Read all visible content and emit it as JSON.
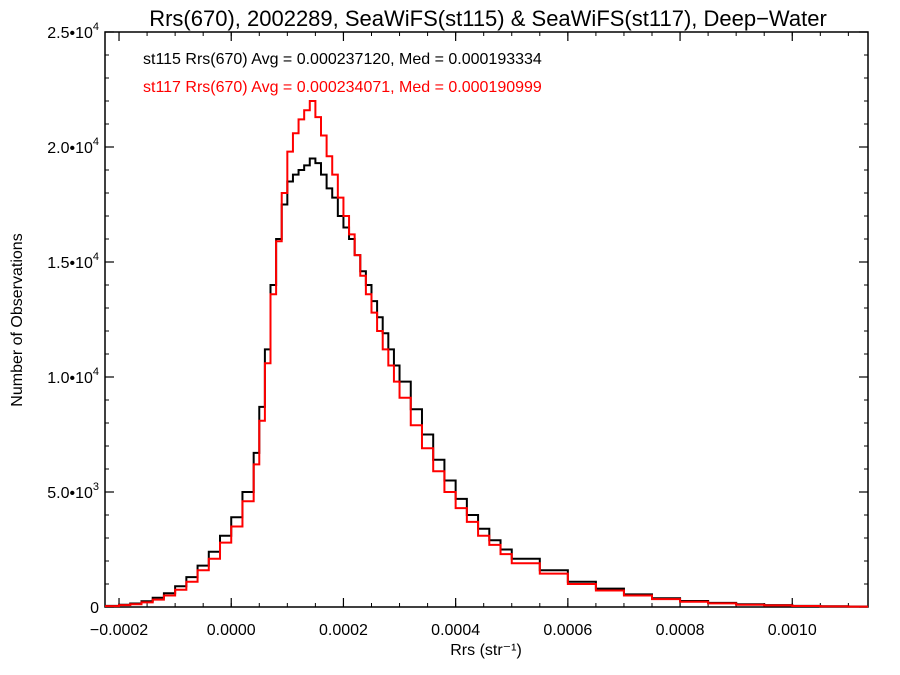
{
  "chart_data": {
    "type": "line",
    "title": "Rrs(670), 2002289, SeaWiFS(st115) & SeaWiFS(st117), Deep−Water",
    "xlabel": "Rrs (str⁻¹)",
    "ylabel": "Number of Observations",
    "xlim": [
      -0.000225,
      0.001135
    ],
    "ylim": [
      0,
      25000
    ],
    "x_ticks": [
      -0.0002,
      0.0,
      0.0002,
      0.0004,
      0.0006,
      0.0008,
      0.001
    ],
    "x_tick_labels": [
      "−0.0002",
      "0.0000",
      "0.0002",
      "0.0004",
      "0.0006",
      "0.0008",
      "0.0010"
    ],
    "y_ticks": [
      0,
      5000,
      10000,
      15000,
      20000,
      25000
    ],
    "y_tick_labels": [
      {
        "mant": "0",
        "exp": ""
      },
      {
        "mant": "5.0•10",
        "exp": "3"
      },
      {
        "mant": "1.0•10",
        "exp": "4"
      },
      {
        "mant": "1.5•10",
        "exp": "4"
      },
      {
        "mant": "2.0•10",
        "exp": "4"
      },
      {
        "mant": "2.5•10",
        "exp": "4"
      }
    ],
    "grid": false,
    "annotations": [
      {
        "text": "st115 Rrs(670) Avg = 0.000237120, Med = 0.000193334",
        "color": "#000000"
      },
      {
        "text": "st117 Rrs(670) Avg = 0.000234071, Med = 0.000190999",
        "color": "#ff0000"
      }
    ],
    "series": [
      {
        "color": "#000000",
        "render": "step",
        "x": [
          -0.000225,
          -0.0002,
          -0.00018,
          -0.00016,
          -0.00014,
          -0.00012,
          -0.0001,
          -8e-05,
          -6e-05,
          -4e-05,
          -2e-05,
          0.0,
          2e-05,
          4e-05,
          5e-05,
          6e-05,
          7e-05,
          8e-05,
          9e-05,
          0.0001,
          0.00011,
          0.00012,
          0.00013,
          0.00014,
          0.00015,
          0.00016,
          0.00017,
          0.00018,
          0.00019,
          0.0002,
          0.00021,
          0.00022,
          0.00023,
          0.00024,
          0.00025,
          0.00026,
          0.00027,
          0.00028,
          0.00029,
          0.0003,
          0.00032,
          0.00034,
          0.00036,
          0.00038,
          0.0004,
          0.00042,
          0.00044,
          0.00046,
          0.00048,
          0.0005,
          0.00055,
          0.0006,
          0.00065,
          0.0007,
          0.00075,
          0.0008,
          0.00085,
          0.0009,
          0.00095,
          0.001,
          0.00105,
          0.0011
        ],
        "y": [
          50,
          100,
          150,
          250,
          400,
          600,
          900,
          1300,
          1800,
          2400,
          3100,
          3900,
          5000,
          6700,
          8700,
          11200,
          14000,
          16000,
          17500,
          18500,
          18800,
          19000,
          19200,
          19500,
          19300,
          18800,
          18200,
          17800,
          17000,
          16500,
          16000,
          15300,
          14600,
          14000,
          13300,
          12600,
          11900,
          11200,
          10500,
          9800,
          8600,
          7500,
          6400,
          5500,
          4700,
          4000,
          3400,
          2900,
          2500,
          2100,
          1600,
          1100,
          800,
          550,
          380,
          260,
          180,
          120,
          80,
          50,
          30,
          20
        ]
      },
      {
        "color": "#ff0000",
        "render": "step",
        "x": [
          -0.000225,
          -0.0002,
          -0.00018,
          -0.00016,
          -0.00014,
          -0.00012,
          -0.0001,
          -8e-05,
          -6e-05,
          -4e-05,
          -2e-05,
          0.0,
          2e-05,
          4e-05,
          5e-05,
          6e-05,
          7e-05,
          8e-05,
          9e-05,
          0.0001,
          0.00011,
          0.00012,
          0.00013,
          0.00014,
          0.00015,
          0.00016,
          0.00017,
          0.00018,
          0.00019,
          0.0002,
          0.00021,
          0.00022,
          0.00023,
          0.00024,
          0.00025,
          0.00026,
          0.00027,
          0.00028,
          0.00029,
          0.0003,
          0.00032,
          0.00034,
          0.00036,
          0.00038,
          0.0004,
          0.00042,
          0.00044,
          0.00046,
          0.00048,
          0.0005,
          0.00055,
          0.0006,
          0.00065,
          0.0007,
          0.00075,
          0.0008,
          0.00085,
          0.0009,
          0.00095,
          0.001,
          0.00105,
          0.0011
        ],
        "y": [
          40,
          80,
          120,
          200,
          320,
          500,
          750,
          1100,
          1600,
          2100,
          2800,
          3500,
          4600,
          6200,
          8100,
          10600,
          13600,
          15900,
          18000,
          19800,
          20600,
          21200,
          21600,
          22000,
          21300,
          20500,
          19600,
          18800,
          17800,
          17000,
          16200,
          15300,
          14400,
          13600,
          12800,
          12000,
          11200,
          10500,
          9800,
          9100,
          7900,
          6900,
          5900,
          5000,
          4300,
          3700,
          3100,
          2700,
          2300,
          1900,
          1450,
          1000,
          720,
          500,
          340,
          230,
          160,
          100,
          70,
          45,
          25,
          15
        ]
      }
    ]
  }
}
